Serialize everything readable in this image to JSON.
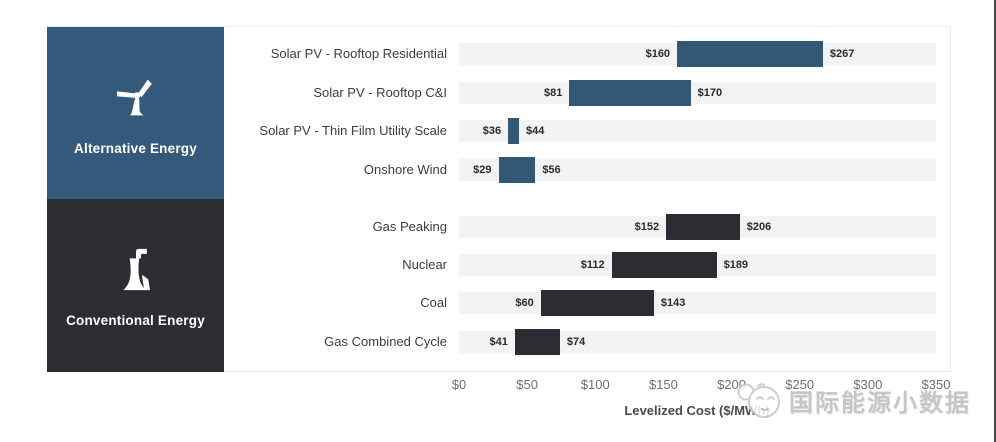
{
  "colors": {
    "alternative": "#35597B",
    "alternative_bar": "#315877",
    "conventional": "#2B2D33",
    "conventional_bar": "#2B2D33",
    "track": "#F3F3F4",
    "row_label_text": "#3D3D3D",
    "value_text": "#2B2B2B",
    "tick_text": "#6F6F6F",
    "axis_title_text": "#4A4A4A"
  },
  "groups": [
    {
      "label": "Alternative Energy",
      "icon": "wind-turbine-icon",
      "color": "#35597B"
    },
    {
      "label": "Conventional Energy",
      "icon": "power-plant-icon",
      "color": "#2B2D33"
    }
  ],
  "chart_data": {
    "type": "bar",
    "variant": "horizontal-range",
    "title": "",
    "xlabel": "Levelized Cost ($/MWh)",
    "ylabel": "",
    "xlim": [
      0,
      350
    ],
    "x_ticks": [
      "$0",
      "$50",
      "$100",
      "$150",
      "$200",
      "$250",
      "$300",
      "$350"
    ],
    "grid": false,
    "legend_position": "left-panels",
    "series": [
      {
        "name": "Alternative Energy",
        "color": "#315877",
        "rows": [
          {
            "label": "Solar PV - Rooftop Residential",
            "min": 160,
            "max": 267,
            "min_label": "$160",
            "max_label": "$267"
          },
          {
            "label": "Solar PV - Rooftop C&I",
            "min": 81,
            "max": 170,
            "min_label": "$81",
            "max_label": "$170"
          },
          {
            "label": "Solar PV - Thin Film Utility Scale",
            "min": 36,
            "max": 44,
            "min_label": "$36",
            "max_label": "$44"
          },
          {
            "label": "Onshore Wind",
            "min": 29,
            "max": 56,
            "min_label": "$29",
            "max_label": "$56"
          }
        ]
      },
      {
        "name": "Conventional Energy",
        "color": "#2B2D33",
        "rows": [
          {
            "label": "Gas Peaking",
            "min": 152,
            "max": 206,
            "min_label": "$152",
            "max_label": "$206"
          },
          {
            "label": "Nuclear",
            "min": 112,
            "max": 189,
            "min_label": "$112",
            "max_label": "$189"
          },
          {
            "label": "Coal",
            "min": 60,
            "max": 143,
            "min_label": "$60",
            "max_label": "$143"
          },
          {
            "label": "Gas Combined Cycle",
            "min": 41,
            "max": 74,
            "min_label": "$41",
            "max_label": "$74"
          }
        ]
      }
    ]
  },
  "watermark": {
    "text": "国际能源小数据",
    "icon": "cartoon-face-logo"
  }
}
